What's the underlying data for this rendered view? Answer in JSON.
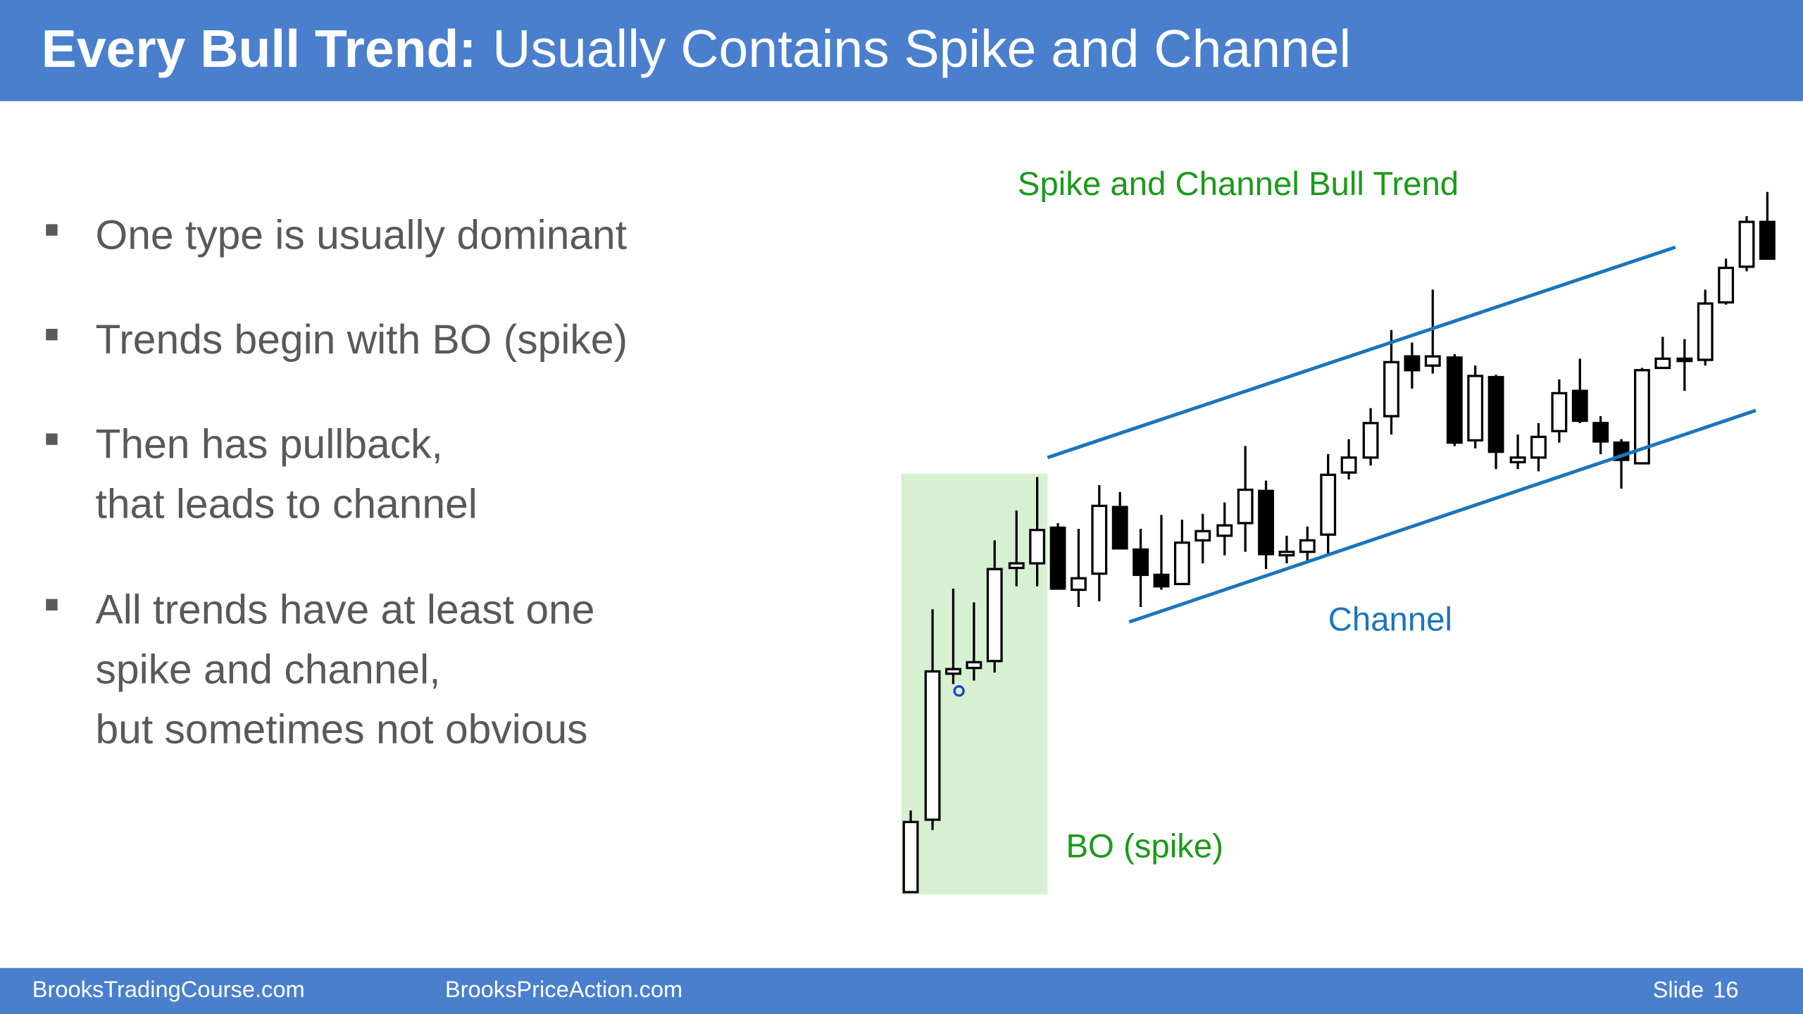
{
  "header": {
    "title_bold": "Every Bull Trend:",
    "title_rest": "Usually Contains Spike and Channel"
  },
  "bullets": [
    {
      "lines": [
        "One type is usually dominant"
      ]
    },
    {
      "lines": [
        "Trends begin with BO (spike)"
      ]
    },
    {
      "lines": [
        "Then has pullback,",
        "that leads to channel"
      ]
    },
    {
      "lines": [
        "All trends have at least one",
        "spike and channel,",
        "but sometimes not obvious"
      ]
    }
  ],
  "figure": {
    "title": "Spike and Channel Bull Trend",
    "channel_label": "Channel",
    "spike_label": "BO (spike)"
  },
  "footer": {
    "left": "BrooksTradingCourse.com",
    "middle": "BrooksPriceAction.com",
    "slide_label": "Slide",
    "slide_number": "16"
  }
}
